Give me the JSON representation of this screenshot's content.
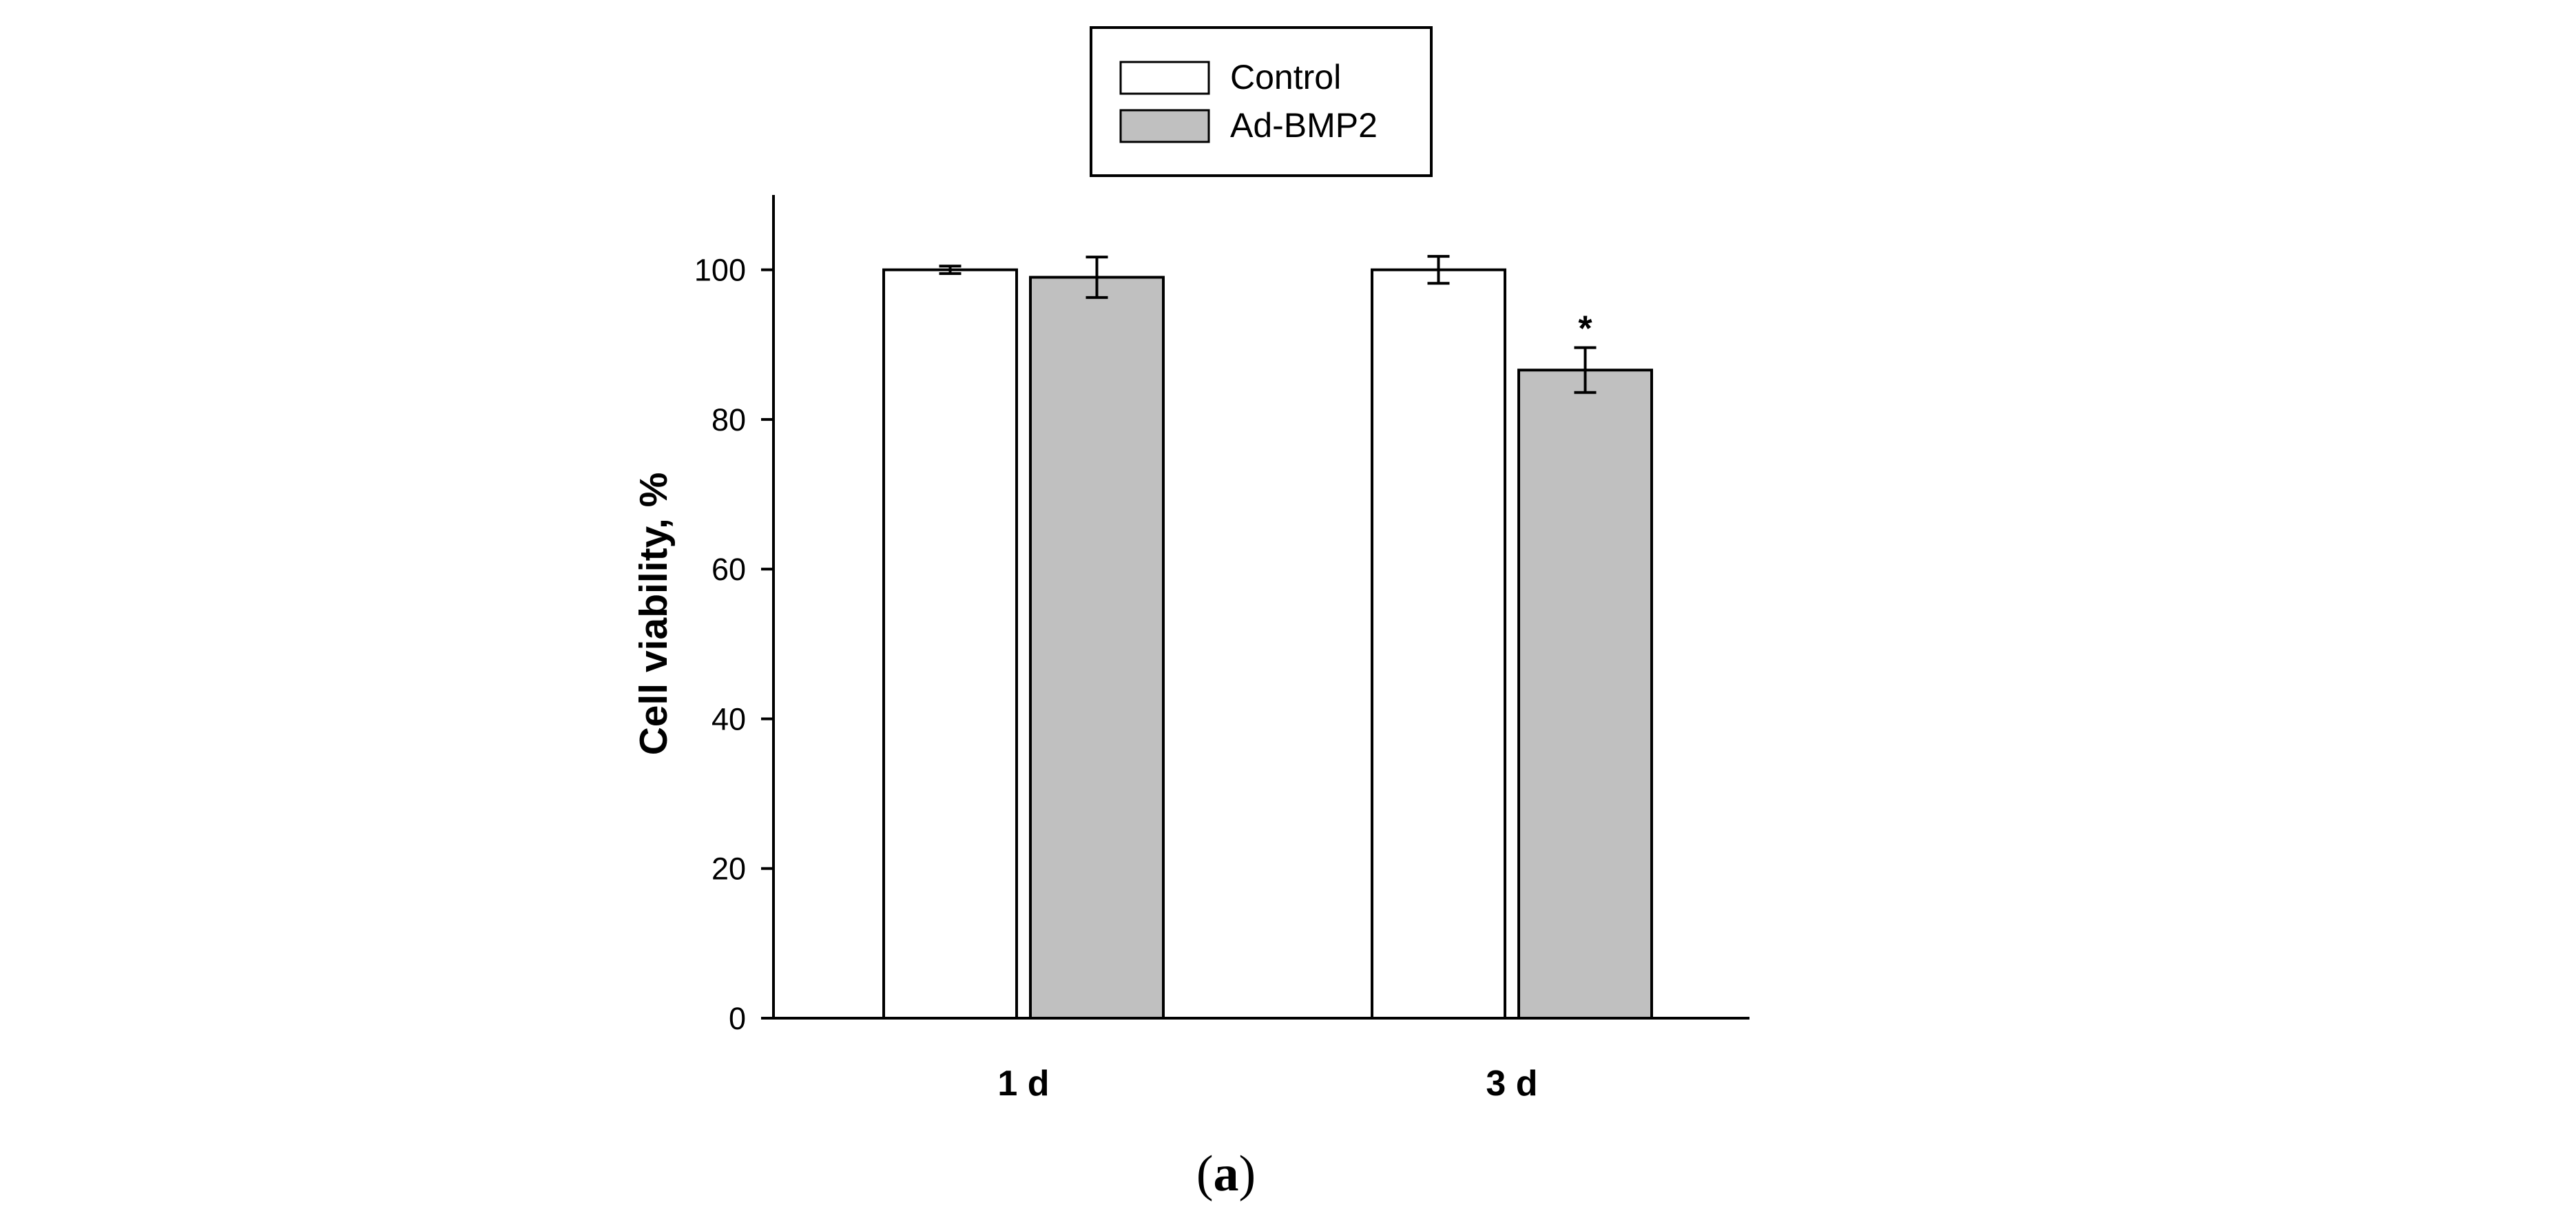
{
  "chart_data": {
    "type": "bar",
    "title": "",
    "xlabel": "",
    "ylabel": "Cell viability, %",
    "ylim": [
      0,
      110
    ],
    "yticks": [
      0,
      20,
      40,
      60,
      80,
      100
    ],
    "categories": [
      "1 d",
      "3 d"
    ],
    "series": [
      {
        "name": "Control",
        "values": [
          100,
          100
        ],
        "errors": [
          0.5,
          1.8
        ],
        "color": "#ffffff"
      },
      {
        "name": "Ad-BMP2",
        "values": [
          99,
          86.6
        ],
        "errors": [
          2.7,
          3.0
        ],
        "color": "#c0c0c0"
      }
    ],
    "annotations": [
      {
        "text": "*",
        "category": "3 d",
        "series": "Ad-BMP2"
      }
    ],
    "legend": {
      "placement": "top-center",
      "entries": [
        "Control",
        "Ad-BMP2"
      ]
    },
    "grid": false,
    "panel_label": {
      "open": "(",
      "letter": "a",
      "close": ")"
    }
  }
}
